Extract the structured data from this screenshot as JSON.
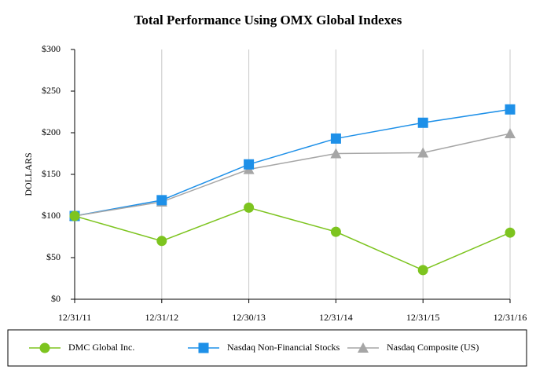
{
  "chart_data": {
    "type": "line",
    "title": "Total Performance Using OMX Global Indexes",
    "y_label": "DOLLARS",
    "categories": [
      "12/31/11",
      "12/31/12",
      "12/30/13",
      "12/31/14",
      "12/31/15",
      "12/31/16"
    ],
    "series": [
      {
        "name": "DMC Global Inc.",
        "color": "#7dc41f",
        "marker": "circle",
        "values": [
          100,
          70,
          110,
          81,
          35,
          80
        ]
      },
      {
        "name": "Nasdaq Non-Financial Stocks",
        "color": "#1e90e8",
        "marker": "square",
        "values": [
          100,
          119,
          162,
          193,
          212,
          228
        ]
      },
      {
        "name": "Nasdaq Composite (US)",
        "color": "#a6a6a6",
        "marker": "triangle",
        "values": [
          100,
          117,
          156,
          175,
          176,
          199
        ]
      }
    ],
    "ylim": [
      0,
      300
    ],
    "yticks": [
      {
        "value": 0,
        "label": "$0"
      },
      {
        "value": 50,
        "label": "$50"
      },
      {
        "value": 100,
        "label": "$100"
      },
      {
        "value": 150,
        "label": "$150"
      },
      {
        "value": 200,
        "label": "$200"
      },
      {
        "value": 250,
        "label": "$250"
      },
      {
        "value": 300,
        "label": "$300"
      }
    ],
    "grid": "x",
    "legend": "bottom"
  }
}
